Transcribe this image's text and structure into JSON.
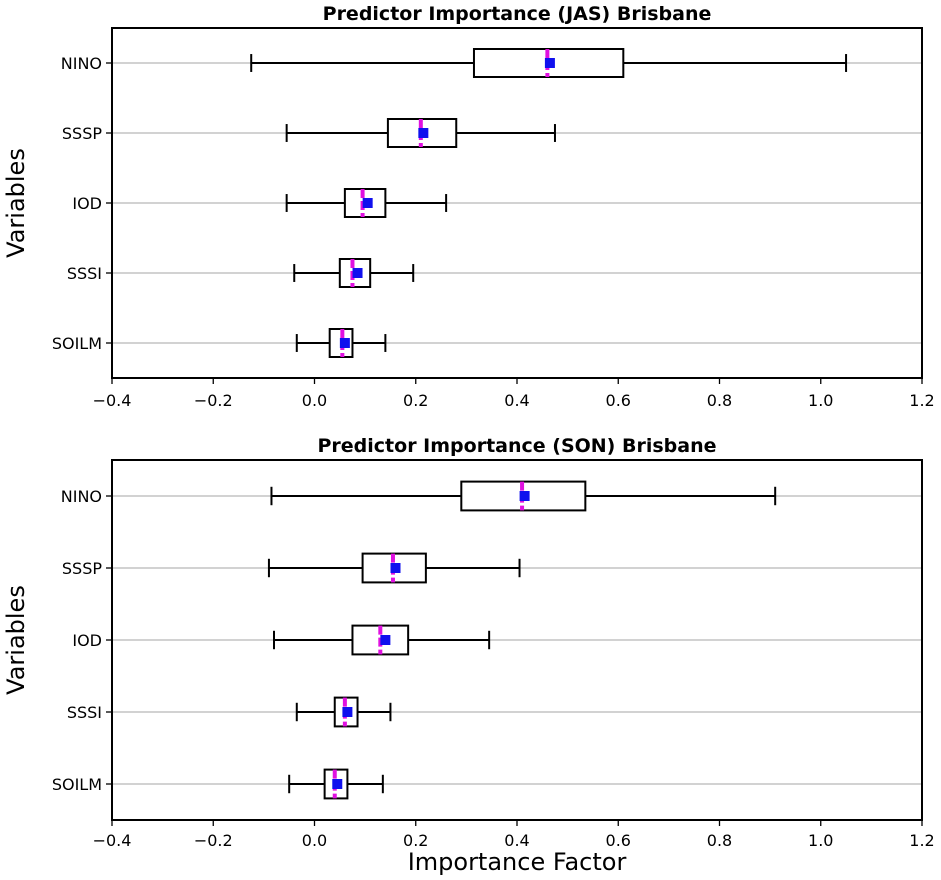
{
  "chart_data": [
    {
      "type": "box",
      "title": "Predictor Importance (JAS) Brisbane",
      "ylabel": "Variables",
      "xlabel": "",
      "xlim": [
        -0.4,
        1.2
      ],
      "xticks": [
        -0.4,
        -0.2,
        0.0,
        0.2,
        0.4,
        0.6,
        0.8,
        1.0,
        1.2
      ],
      "xtick_labels": [
        "−0.4",
        "−0.2",
        "0.0",
        "0.2",
        "0.4",
        "0.6",
        "0.8",
        "1.0",
        "1.2"
      ],
      "grid": "horizontal",
      "categories": [
        "NINO",
        "SSSP",
        "IOD",
        "SSSI",
        "SOILM"
      ],
      "boxes": [
        {
          "label": "NINO",
          "whisker_low": -0.125,
          "q1": 0.315,
          "median": 0.46,
          "q3": 0.61,
          "whisker_high": 1.05,
          "mean": 0.465
        },
        {
          "label": "SSSP",
          "whisker_low": -0.055,
          "q1": 0.145,
          "median": 0.21,
          "q3": 0.28,
          "whisker_high": 0.475,
          "mean": 0.215
        },
        {
          "label": "IOD",
          "whisker_low": -0.055,
          "q1": 0.06,
          "median": 0.095,
          "q3": 0.14,
          "whisker_high": 0.26,
          "mean": 0.105
        },
        {
          "label": "SSSI",
          "whisker_low": -0.04,
          "q1": 0.05,
          "median": 0.075,
          "q3": 0.11,
          "whisker_high": 0.195,
          "mean": 0.085
        },
        {
          "label": "SOILM",
          "whisker_low": -0.035,
          "q1": 0.03,
          "median": 0.055,
          "q3": 0.075,
          "whisker_high": 0.14,
          "mean": 0.06
        }
      ]
    },
    {
      "type": "box",
      "title": "Predictor Importance (SON) Brisbane",
      "ylabel": "Variables",
      "xlabel": "Importance Factor",
      "xlim": [
        -0.4,
        1.2
      ],
      "xticks": [
        -0.4,
        -0.2,
        0.0,
        0.2,
        0.4,
        0.6,
        0.8,
        1.0,
        1.2
      ],
      "xtick_labels": [
        "−0.4",
        "−0.2",
        "0.0",
        "0.2",
        "0.4",
        "0.6",
        "0.8",
        "1.0",
        "1.2"
      ],
      "grid": "horizontal",
      "categories": [
        "NINO",
        "SSSP",
        "IOD",
        "SSSI",
        "SOILM"
      ],
      "boxes": [
        {
          "label": "NINO",
          "whisker_low": -0.085,
          "q1": 0.29,
          "median": 0.41,
          "q3": 0.535,
          "whisker_high": 0.91,
          "mean": 0.415
        },
        {
          "label": "SSSP",
          "whisker_low": -0.09,
          "q1": 0.095,
          "median": 0.155,
          "q3": 0.22,
          "whisker_high": 0.405,
          "mean": 0.16
        },
        {
          "label": "IOD",
          "whisker_low": -0.08,
          "q1": 0.075,
          "median": 0.13,
          "q3": 0.185,
          "whisker_high": 0.345,
          "mean": 0.14
        },
        {
          "label": "SSSI",
          "whisker_low": -0.035,
          "q1": 0.04,
          "median": 0.06,
          "q3": 0.085,
          "whisker_high": 0.15,
          "mean": 0.065
        },
        {
          "label": "SOILM",
          "whisker_low": -0.05,
          "q1": 0.02,
          "median": 0.04,
          "q3": 0.065,
          "whisker_high": 0.135,
          "mean": 0.045
        }
      ]
    }
  ],
  "colors": {
    "median_line": "#e010e0",
    "mean_marker": "#1010ee",
    "box_stroke": "#000000",
    "grid": "#b8b8b8"
  }
}
